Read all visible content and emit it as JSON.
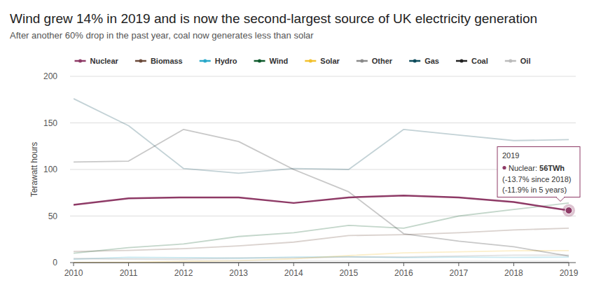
{
  "chart_data": {
    "type": "line",
    "title": "Wind grew 14% in 2019 and is now the second-largest source of UK electricity generation",
    "subtitle": "After another 60% drop in the past year, coal now generates less than solar",
    "y_label": "Terawatt hours",
    "x": [
      2010,
      2011,
      2012,
      2013,
      2014,
      2015,
      2016,
      2017,
      2018,
      2019
    ],
    "xlim": [
      2010,
      2019
    ],
    "xticks": [
      2010,
      2011,
      2012,
      2013,
      2014,
      2015,
      2016,
      2017,
      2018,
      2019
    ],
    "ylim": [
      0,
      200
    ],
    "yticks": [
      0,
      50,
      100,
      150,
      200
    ],
    "grid": true,
    "legend": "top",
    "series": [
      {
        "name": "Nuclear",
        "color": "#8e3a66",
        "values": [
          62,
          69,
          70,
          70,
          64,
          70,
          72,
          70,
          65,
          56
        ]
      },
      {
        "name": "Biomass",
        "color": "#6b4a3a",
        "values": [
          12,
          13,
          15,
          18,
          22,
          29,
          30,
          32,
          35,
          37
        ]
      },
      {
        "name": "Hydro",
        "color": "#2aa8c9",
        "values": [
          3.6,
          5.7,
          5.3,
          4.7,
          5.9,
          6.3,
          5.4,
          5.9,
          5.5,
          5.9
        ]
      },
      {
        "name": "Wind",
        "color": "#0e5a2c",
        "values": [
          10,
          16,
          20,
          28,
          32,
          40,
          37,
          50,
          57,
          64
        ]
      },
      {
        "name": "Solar",
        "color": "#f2c12e",
        "values": [
          0,
          0.2,
          1.3,
          2,
          4,
          7.5,
          10.4,
          11.5,
          12.7,
          12.9
        ]
      },
      {
        "name": "Other",
        "color": "#8a8a8a",
        "values": [
          4,
          4,
          4,
          5,
          5,
          6,
          6,
          7,
          8,
          8
        ]
      },
      {
        "name": "Gas",
        "color": "#0f4c5c",
        "values": [
          176,
          147,
          101,
          96,
          101,
          100,
          143,
          137,
          131,
          132
        ]
      },
      {
        "name": "Coal",
        "color": "#222222",
        "values": [
          108,
          109,
          143,
          130,
          100,
          76,
          31,
          23,
          17,
          7
        ]
      },
      {
        "name": "Oil",
        "color": "#bbbbbb",
        "values": [
          4.8,
          3.5,
          2.9,
          2.4,
          2.4,
          2.2,
          2,
          2,
          1.8,
          1.6
        ]
      }
    ],
    "annotations": [
      {
        "x": 2019,
        "title": "2019",
        "label": "Nuclear:",
        "value_label": "56TWh",
        "notes": [
          "(-13.7% since 2018)",
          "(-11.9% in 5 years)"
        ]
      }
    ]
  }
}
